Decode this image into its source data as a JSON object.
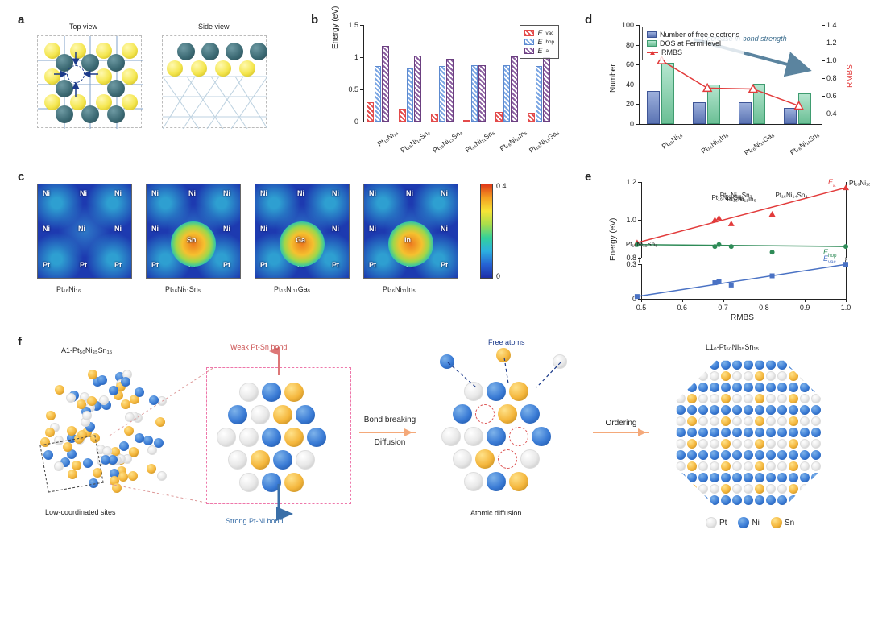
{
  "panel_labels": {
    "a": "a",
    "b": "b",
    "c": "c",
    "d": "d",
    "e": "e",
    "f": "f"
  },
  "a": {
    "top_view_label": "Top view",
    "side_view_label": "Side view"
  },
  "b": {
    "type": "grouped-bar",
    "ylabel": "Energy (eV)",
    "ylim": [
      0,
      1.5
    ],
    "ytick_step": 0.5,
    "background_color": "#ffffff",
    "categories": [
      "Pt₁₆Ni₁₆",
      "Pt₁₆Ni₁₄Sn₂",
      "Pt₁₆Ni₁₃Sn₃",
      "Pt₁₆Ni₁₁Sn₅",
      "Pt₁₆Ni₁₁In₅",
      "Pt₁₆Ni₁₁Ga₅"
    ],
    "series": [
      {
        "name": "Eᵥₐc",
        "legend": "E_vac",
        "color": "#e34b4b",
        "hatch": "hatch-red",
        "values": [
          0.3,
          0.2,
          0.12,
          0.02,
          0.15,
          0.14
        ]
      },
      {
        "name": "E_hop",
        "legend": "E_hop",
        "color": "#7ba6e3",
        "hatch": "hatch-blue",
        "values": [
          0.86,
          0.83,
          0.86,
          0.87,
          0.87,
          0.86
        ]
      },
      {
        "name": "Eₐ",
        "legend": "E_a",
        "color": "#8b5fa0",
        "hatch": "hatch-purple",
        "values": [
          1.17,
          1.03,
          0.98,
          0.88,
          1.01,
          1.0
        ]
      }
    ],
    "bar_width": 0.24
  },
  "c": {
    "type": "heatmap",
    "labels": [
      "Pt₁₆Ni₁₆",
      "Pt₁₆Ni₁₁Sn₅",
      "Pt₁₆Ni₁₁Ga₅",
      "Pt₁₆Ni₁₁In₅"
    ],
    "cbar_min": 0,
    "cbar_max": 0.4,
    "atoms": {
      "Ni": "Ni",
      "Pt": "Pt",
      "Sn": "Sn",
      "Ga": "Ga",
      "In": "In"
    },
    "center_atom": [
      "",
      "Sn",
      "Ga",
      "In"
    ]
  },
  "d": {
    "type": "bar+line",
    "ylabel_left": "Number",
    "ylabel_right": "RMBS",
    "xlim_categories": [
      "Pt₁₆Ni₁₆",
      "Pt₁₆Ni₁₁In₅",
      "Pt₁₆Ni₁₁Ga₅",
      "Pt₁₆Ni₁₁Sn₅"
    ],
    "ylim_left": [
      0,
      100
    ],
    "ytick_left_step": 20,
    "ylim_right": [
      0,
      1.4
    ],
    "ytick_right": [
      0.4,
      0.6,
      0.8,
      1.0,
      1.2,
      1.4
    ],
    "series": [
      {
        "name": "Number of free electrons",
        "kind": "bar",
        "color": "#7a8ccf",
        "class": "bar-blue",
        "values": [
          33,
          22,
          22,
          16
        ]
      },
      {
        "name": "DOS at Fermi level",
        "kind": "bar",
        "color": "#77c9a2",
        "class": "bar-green",
        "values": [
          62,
          40,
          41,
          31
        ]
      },
      {
        "name": "RMBS",
        "kind": "line",
        "color": "#e23b3b",
        "marker": "triangle-open",
        "values": [
          1.0,
          0.69,
          0.68,
          0.49
        ]
      }
    ],
    "annotation": "Decrease in bond strength",
    "annotation_color": "#3f6f8f"
  },
  "e": {
    "type": "scatter+line",
    "xlabel": "RMBS",
    "ylabel": "Energy (eV)",
    "xlim": [
      0.5,
      1.0
    ],
    "xtick_step": 0.1,
    "y_break": true,
    "y_upper": [
      0.8,
      1.2
    ],
    "y_lower": [
      0,
      0.3
    ],
    "series": [
      {
        "name": "Eₐ",
        "legend": "E_a",
        "color": "#e23b3b",
        "marker": "triangle",
        "points": [
          [
            0.49,
            0.88
          ],
          [
            0.68,
            1.0
          ],
          [
            0.69,
            1.01
          ],
          [
            0.72,
            0.98
          ],
          [
            0.82,
            1.03
          ],
          [
            1.0,
            1.17
          ]
        ],
        "labels": [
          "Pt₁₆Ni₁₁Sn₅",
          "Pt₁₆Ni₁₁Ga₅",
          "Pt₁₆Ni₁₁In₅",
          "Pt₁₆Ni₁₃Sn₃",
          "Pt₁₆Ni₁₄Sn₂",
          "Pt₁₆Ni₁₆"
        ]
      },
      {
        "name": "E_hop",
        "legend": "E_hop",
        "color": "#2e8b57",
        "marker": "circle",
        "points": [
          [
            0.49,
            0.87
          ],
          [
            0.68,
            0.86
          ],
          [
            0.69,
            0.87
          ],
          [
            0.72,
            0.86
          ],
          [
            0.82,
            0.83
          ],
          [
            1.0,
            0.86
          ]
        ]
      },
      {
        "name": "Eᵥₐc",
        "legend": "E_vac",
        "color": "#4a72c4",
        "marker": "square",
        "points": [
          [
            0.49,
            0.02
          ],
          [
            0.68,
            0.14
          ],
          [
            0.69,
            0.15
          ],
          [
            0.72,
            0.12
          ],
          [
            0.82,
            0.2
          ],
          [
            1.0,
            0.3
          ]
        ]
      }
    ]
  },
  "f": {
    "title_left": "A1-Pt₅₀Ni₃₅Sn₁₅",
    "caption_left": "Low-coordinated sites",
    "weak_label": "Weak Pt-Sn bond",
    "strong_label": "Strong Pt-Ni bond",
    "step1": "Bond breaking",
    "step1b": "Diffusion",
    "free_label": "Free atoms",
    "caption_mid": "Atomic diffusion",
    "step2": "Ordering",
    "title_right": "L1₀-Pt₅₀Ni₃₅Sn₁₅",
    "legend": {
      "Pt": "Pt",
      "Ni": "Ni",
      "Sn": "Sn"
    },
    "colors": {
      "Pt": "#d9d9d9",
      "Ni": "#3a7bd5",
      "Sn": "#f4b63c",
      "arrow": "#f4a97a"
    }
  }
}
